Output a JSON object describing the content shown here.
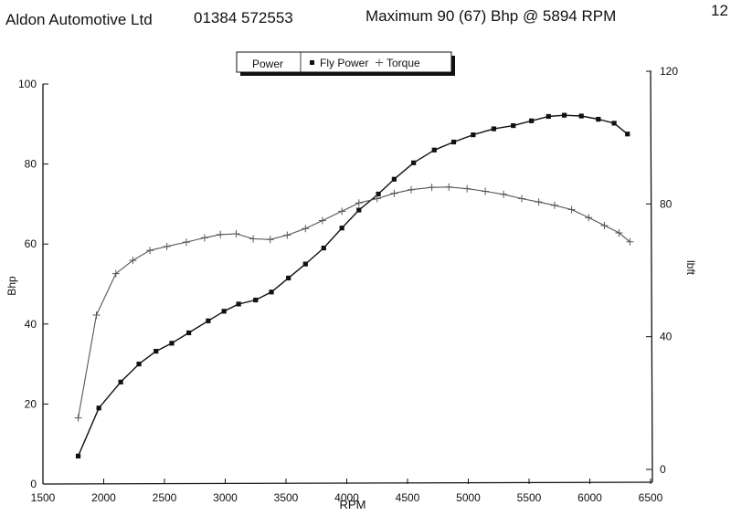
{
  "header": {
    "company": "Aldon Automotive Ltd",
    "phone": "01384 572553",
    "maximum": "Maximum 90 (67) Bhp @ 5894 RPM",
    "page_number": "12"
  },
  "chart_data": {
    "type": "line",
    "title": "",
    "xlabel": "RPM",
    "ylabel": "Bhp",
    "y2label": "lbft",
    "xlim": [
      1500,
      6500
    ],
    "ylim": [
      0,
      100
    ],
    "y2lim": [
      0,
      120
    ],
    "x_ticks": [
      1500,
      2000,
      2500,
      3000,
      3500,
      4000,
      4500,
      5000,
      5500,
      6000,
      6500
    ],
    "y_ticks": [
      0,
      20,
      40,
      60,
      80,
      100
    ],
    "y2_ticks": [
      0,
      40,
      80,
      120
    ],
    "legend": {
      "title": "Power",
      "position": "top-center",
      "entries": [
        "Fly Power",
        "Torque"
      ]
    },
    "grid": false,
    "series": [
      {
        "name": "Fly Power",
        "axis": "left",
        "marker": "square",
        "color": "#111111",
        "points": [
          [
            1790,
            7.0
          ],
          [
            1960,
            19.0
          ],
          [
            2140,
            25.5
          ],
          [
            2290,
            30.0
          ],
          [
            2430,
            33.2
          ],
          [
            2560,
            35.2
          ],
          [
            2700,
            37.8
          ],
          [
            2860,
            40.8
          ],
          [
            2990,
            43.2
          ],
          [
            3110,
            45.0
          ],
          [
            3250,
            46.0
          ],
          [
            3380,
            48.0
          ],
          [
            3520,
            51.5
          ],
          [
            3660,
            55.0
          ],
          [
            3810,
            59.0
          ],
          [
            3960,
            64.0
          ],
          [
            4100,
            68.5
          ],
          [
            4260,
            72.5
          ],
          [
            4390,
            76.2
          ],
          [
            4550,
            80.3
          ],
          [
            4720,
            83.5
          ],
          [
            4880,
            85.5
          ],
          [
            5040,
            87.3
          ],
          [
            5210,
            88.8
          ],
          [
            5370,
            89.6
          ],
          [
            5520,
            90.8
          ],
          [
            5660,
            91.9
          ],
          [
            5790,
            92.2
          ],
          [
            5930,
            92.0
          ],
          [
            6070,
            91.2
          ],
          [
            6200,
            90.2
          ],
          [
            6310,
            87.5
          ]
        ]
      },
      {
        "name": "Torque",
        "axis": "right",
        "marker": "plus",
        "color": "#555555",
        "points": [
          [
            1790,
            15.5
          ],
          [
            1940,
            46.5
          ],
          [
            2100,
            59.0
          ],
          [
            2240,
            63.0
          ],
          [
            2380,
            66.0
          ],
          [
            2520,
            67.2
          ],
          [
            2680,
            68.5
          ],
          [
            2830,
            69.8
          ],
          [
            2960,
            70.8
          ],
          [
            3090,
            71.0
          ],
          [
            3230,
            69.5
          ],
          [
            3370,
            69.3
          ],
          [
            3510,
            70.6
          ],
          [
            3660,
            72.6
          ],
          [
            3800,
            75.0
          ],
          [
            3960,
            77.8
          ],
          [
            4100,
            80.3
          ],
          [
            4250,
            81.6
          ],
          [
            4390,
            83.2
          ],
          [
            4530,
            84.3
          ],
          [
            4700,
            85.0
          ],
          [
            4840,
            85.1
          ],
          [
            4990,
            84.6
          ],
          [
            5140,
            83.8
          ],
          [
            5290,
            82.9
          ],
          [
            5440,
            81.6
          ],
          [
            5580,
            80.6
          ],
          [
            5710,
            79.6
          ],
          [
            5850,
            78.3
          ],
          [
            5990,
            75.9
          ],
          [
            6120,
            73.5
          ],
          [
            6240,
            71.3
          ],
          [
            6330,
            68.6
          ]
        ]
      }
    ]
  }
}
